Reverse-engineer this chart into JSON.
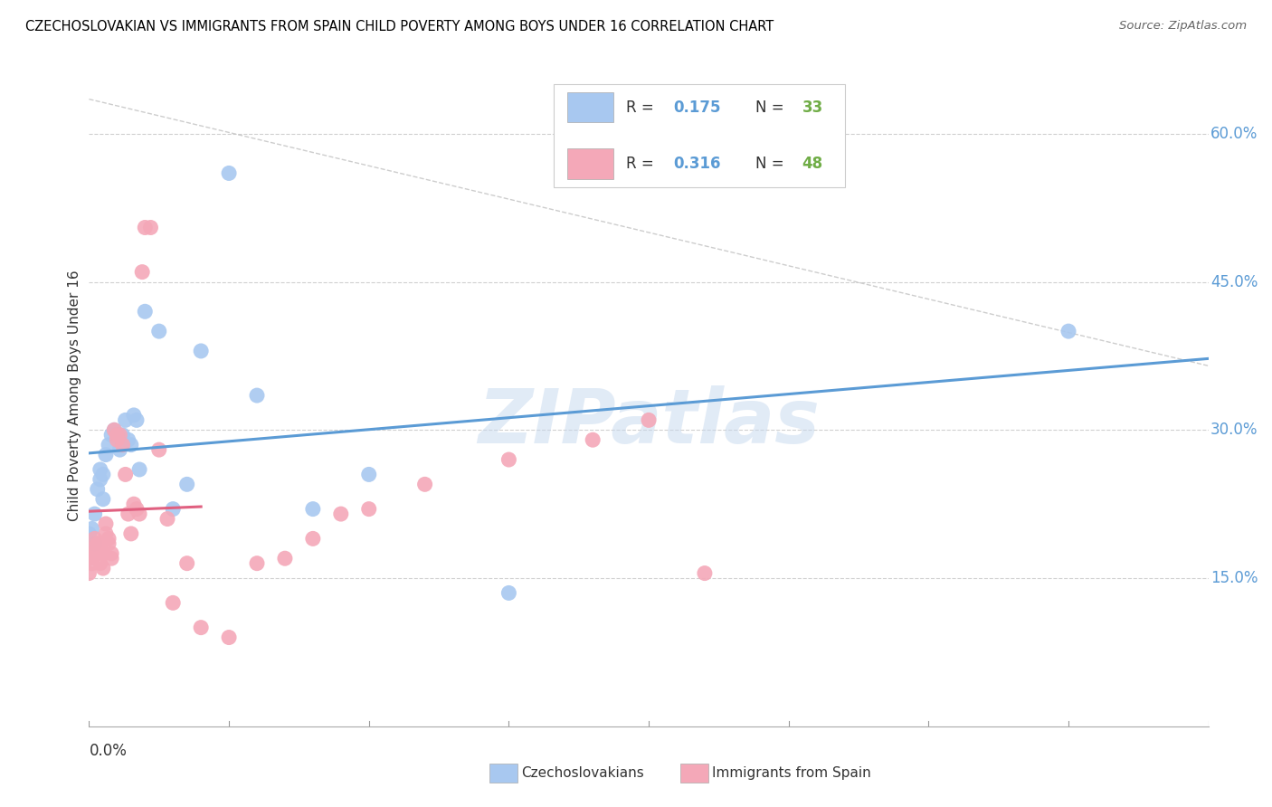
{
  "title": "CZECHOSLOVAKIAN VS IMMIGRANTS FROM SPAIN CHILD POVERTY AMONG BOYS UNDER 16 CORRELATION CHART",
  "source": "Source: ZipAtlas.com",
  "ylabel": "Child Poverty Among Boys Under 16",
  "ytick_labels": [
    "15.0%",
    "30.0%",
    "45.0%",
    "60.0%"
  ],
  "ytick_values": [
    0.15,
    0.3,
    0.45,
    0.6
  ],
  "xlim": [
    0.0,
    0.4
  ],
  "ylim": [
    0.0,
    0.67
  ],
  "blue_color": "#A8C8F0",
  "pink_color": "#F4A8B8",
  "trend_blue": "#5B9BD5",
  "trend_pink": "#E06080",
  "trend_gray": "#C8C8C8",
  "green_color": "#70AD47",
  "watermark": "ZIPatlas",
  "czech_x": [
    0.0,
    0.001,
    0.002,
    0.002,
    0.003,
    0.004,
    0.004,
    0.005,
    0.005,
    0.006,
    0.007,
    0.008,
    0.009,
    0.01,
    0.011,
    0.012,
    0.013,
    0.014,
    0.015,
    0.016,
    0.017,
    0.018,
    0.02,
    0.025,
    0.03,
    0.035,
    0.04,
    0.05,
    0.06,
    0.08,
    0.1,
    0.15,
    0.35
  ],
  "czech_y": [
    0.195,
    0.2,
    0.215,
    0.185,
    0.24,
    0.25,
    0.26,
    0.255,
    0.23,
    0.275,
    0.285,
    0.295,
    0.3,
    0.295,
    0.28,
    0.295,
    0.31,
    0.29,
    0.285,
    0.315,
    0.31,
    0.26,
    0.42,
    0.4,
    0.22,
    0.245,
    0.38,
    0.56,
    0.335,
    0.22,
    0.255,
    0.135,
    0.4
  ],
  "spain_x": [
    0.0,
    0.0,
    0.001,
    0.001,
    0.002,
    0.002,
    0.003,
    0.003,
    0.004,
    0.004,
    0.005,
    0.005,
    0.006,
    0.006,
    0.007,
    0.007,
    0.008,
    0.008,
    0.009,
    0.01,
    0.01,
    0.011,
    0.012,
    0.013,
    0.014,
    0.015,
    0.016,
    0.017,
    0.018,
    0.019,
    0.02,
    0.022,
    0.025,
    0.028,
    0.03,
    0.035,
    0.04,
    0.05,
    0.06,
    0.07,
    0.08,
    0.09,
    0.1,
    0.12,
    0.15,
    0.18,
    0.2,
    0.22
  ],
  "spain_y": [
    0.155,
    0.17,
    0.165,
    0.175,
    0.18,
    0.19,
    0.175,
    0.185,
    0.165,
    0.18,
    0.16,
    0.175,
    0.195,
    0.205,
    0.185,
    0.19,
    0.17,
    0.175,
    0.3,
    0.29,
    0.295,
    0.295,
    0.285,
    0.255,
    0.215,
    0.195,
    0.225,
    0.22,
    0.215,
    0.46,
    0.505,
    0.505,
    0.28,
    0.21,
    0.125,
    0.165,
    0.1,
    0.09,
    0.165,
    0.17,
    0.19,
    0.215,
    0.22,
    0.245,
    0.27,
    0.29,
    0.31,
    0.155
  ]
}
